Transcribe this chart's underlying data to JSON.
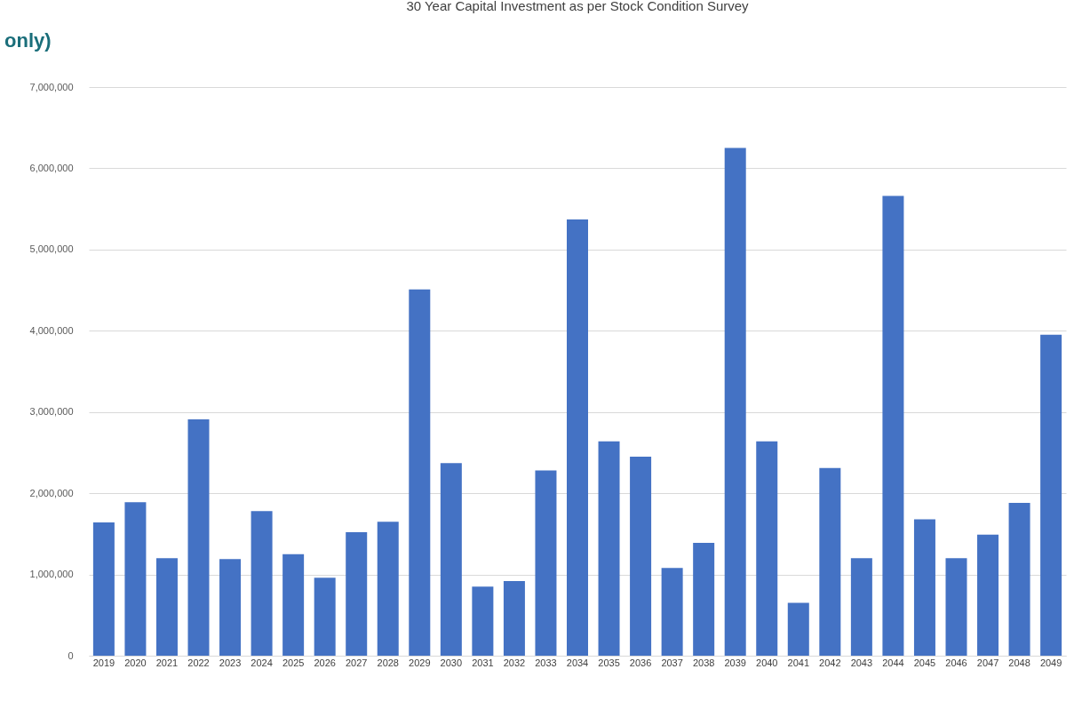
{
  "chart_data": {
    "type": "bar",
    "title": "30 Year Capital Investment as per Stock Condition Survey",
    "annotations": [
      "only)"
    ],
    "categories": [
      "2019",
      "2020",
      "2021",
      "2022",
      "2023",
      "2024",
      "2025",
      "2026",
      "2027",
      "2028",
      "2029",
      "2030",
      "2031",
      "2032",
      "2033",
      "2034",
      "2035",
      "2036",
      "2037",
      "2038",
      "2039",
      "2040",
      "2041",
      "2042",
      "2043",
      "2044",
      "2045",
      "2046",
      "2047",
      "2048",
      "2049"
    ],
    "values": [
      1640000,
      1890000,
      1200000,
      2910000,
      1190000,
      1780000,
      1250000,
      960000,
      1520000,
      1650000,
      4510000,
      2370000,
      850000,
      920000,
      2280000,
      5370000,
      2640000,
      2450000,
      1080000,
      1390000,
      6250000,
      2640000,
      650000,
      2310000,
      1200000,
      5660000,
      1680000,
      1200000,
      1490000,
      1880000,
      3950000
    ],
    "color": "#4472c4",
    "ylim": [
      0,
      7000000
    ],
    "yticks": [
      {
        "value": 0,
        "label": "0"
      },
      {
        "value": 1000000,
        "label": "1,000,000"
      },
      {
        "value": 2000000,
        "label": "2,000,000"
      },
      {
        "value": 3000000,
        "label": "3,000,000"
      },
      {
        "value": 4000000,
        "label": "4,000,000"
      },
      {
        "value": 5000000,
        "label": "5,000,000"
      },
      {
        "value": 6000000,
        "label": "6,000,000"
      },
      {
        "value": 7000000,
        "label": "7,000,000"
      }
    ],
    "grid": "y"
  }
}
